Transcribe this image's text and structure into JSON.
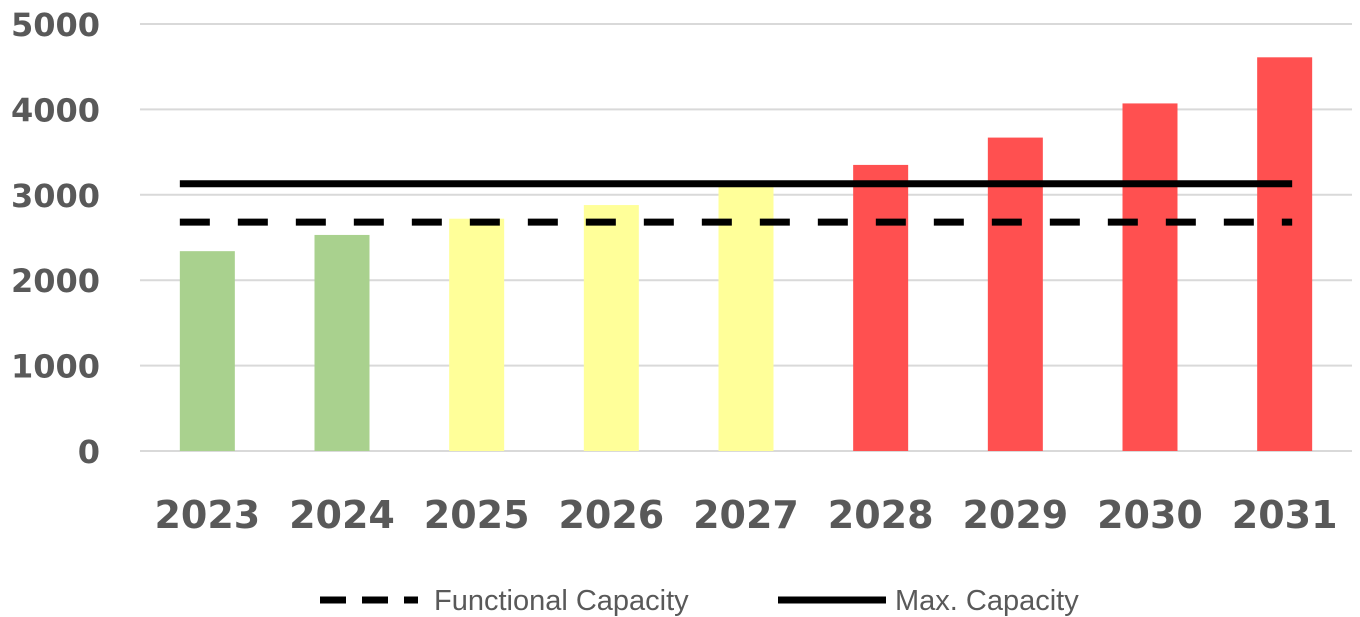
{
  "chart_data": {
    "type": "bar",
    "title": "",
    "xlabel": "",
    "ylabel": "",
    "categories": [
      "2023",
      "2024",
      "2025",
      "2026",
      "2027",
      "2028",
      "2029",
      "2030",
      "2031"
    ],
    "values": [
      2340,
      2530,
      2720,
      2880,
      3100,
      3350,
      3670,
      4070,
      4610
    ],
    "bar_colors": [
      "#a9d18e",
      "#a9d18e",
      "#ffff99",
      "#ffff99",
      "#ffff99",
      "#ff5050",
      "#ff5050",
      "#ff5050",
      "#ff5050"
    ],
    "ylim": [
      0,
      5000
    ],
    "yticks": [
      "0",
      "1000",
      "2000",
      "3000",
      "4000",
      "5000"
    ],
    "grid": true,
    "reference_lines": [
      {
        "name": "Functional Capacity",
        "value": 2680,
        "style": "dashed",
        "color": "#000000"
      },
      {
        "name": "Max. Capacity",
        "value": 3130,
        "style": "solid",
        "color": "#000000"
      }
    ],
    "legend": {
      "placement": "bottom-center",
      "entries": [
        "Functional Capacity",
        "Max. Capacity"
      ]
    }
  }
}
